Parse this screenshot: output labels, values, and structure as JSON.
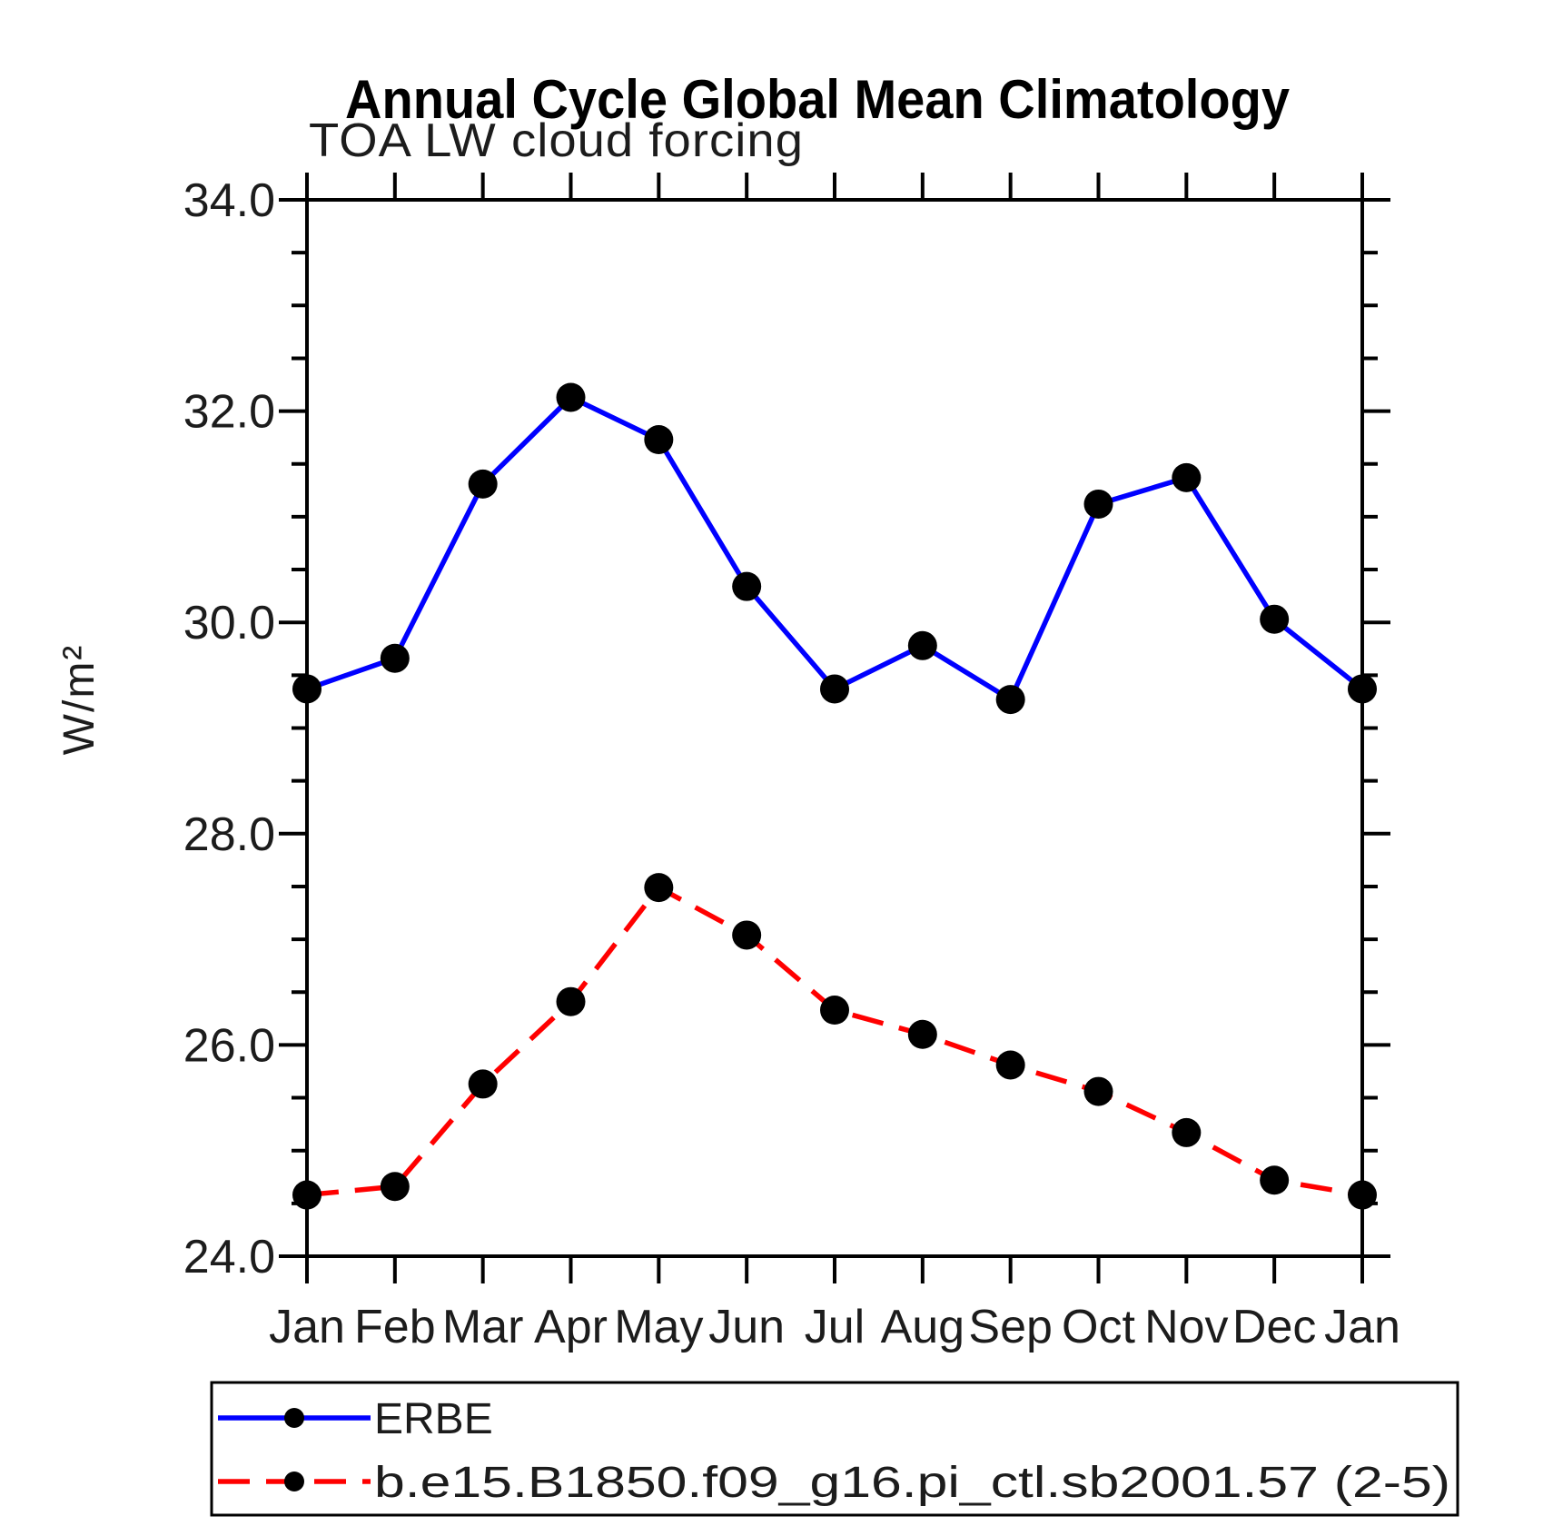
{
  "page": {
    "background": "#ffffff",
    "axis_color": "#000000",
    "text_color": "#1c1c1c"
  },
  "chart_data": {
    "type": "line",
    "title": "Annual Cycle Global Mean Climatology",
    "subtitle": "TOA LW cloud forcing",
    "xlabel": "",
    "ylabel": "W/m²",
    "ylim": [
      24.0,
      34.0
    ],
    "y_major_ticks": [
      {
        "value": 24.0,
        "label": "24.0"
      },
      {
        "value": 26.0,
        "label": "26.0"
      },
      {
        "value": 28.0,
        "label": "28.0"
      },
      {
        "value": 30.0,
        "label": "30.0"
      },
      {
        "value": 32.0,
        "label": "32.0"
      },
      {
        "value": 34.0,
        "label": "34.0"
      }
    ],
    "y_minor_step": 0.5,
    "categories": [
      "Jan",
      "Feb",
      "Mar",
      "Apr",
      "May",
      "Jun",
      "Jul",
      "Aug",
      "Sep",
      "Oct",
      "Nov",
      "Dec",
      "Jan"
    ],
    "grid": false,
    "legend_position": "bottom",
    "marker": {
      "shape": "circle",
      "color": "#000000",
      "radius": 16
    },
    "series": [
      {
        "name": "ERBE",
        "color": "#0000ff",
        "line_style": "solid",
        "values": [
          29.37,
          29.66,
          31.31,
          32.13,
          31.73,
          30.34,
          29.37,
          29.78,
          29.27,
          31.12,
          31.37,
          30.03,
          29.37
        ]
      },
      {
        "name": "b.e15.B1850.f09_g16.pi_ctl.sb2001.57 (2-5)",
        "color": "#ff0000",
        "line_style": "dashed",
        "values": [
          24.58,
          24.66,
          25.63,
          26.41,
          27.49,
          27.04,
          26.33,
          26.1,
          25.81,
          25.56,
          25.17,
          24.72,
          24.58
        ]
      }
    ]
  },
  "legend": {
    "entries": [
      {
        "label": "ERBE"
      },
      {
        "label": "b.e15.B1850.f09_g16.pi_ctl.sb2001.57 (2-5)"
      }
    ]
  }
}
